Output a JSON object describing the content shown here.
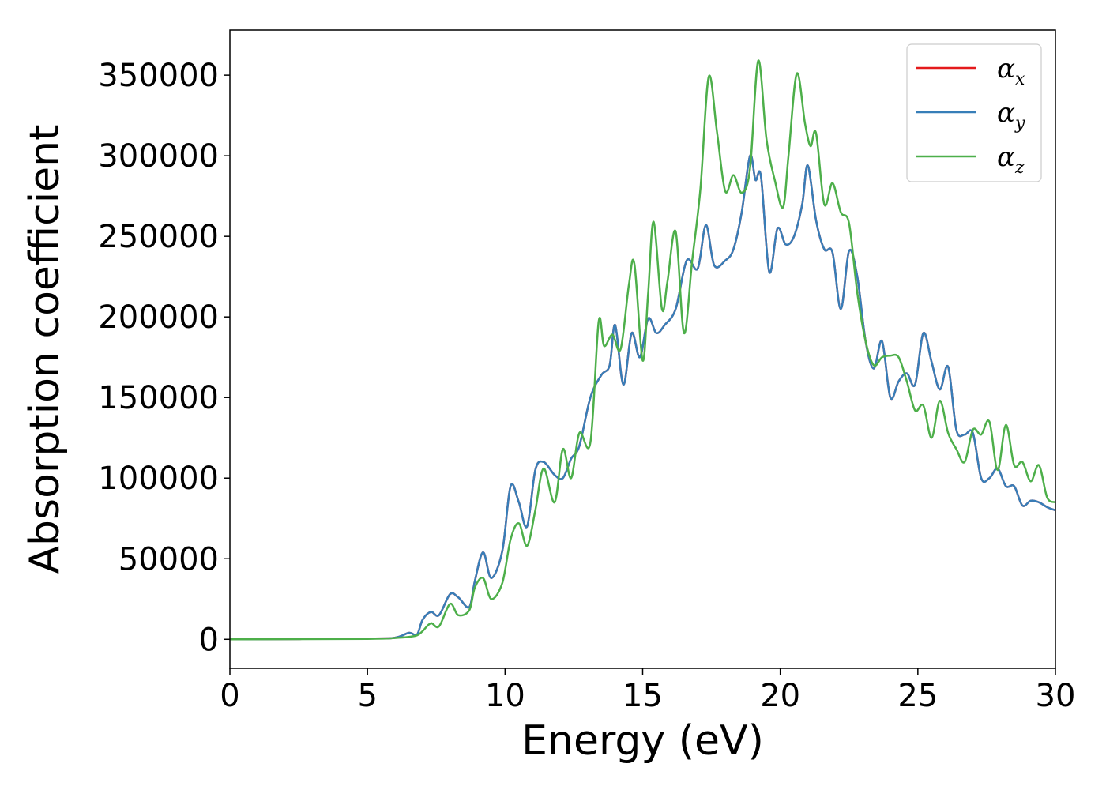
{
  "chart_data": {
    "type": "line",
    "title": "",
    "xlabel": "Energy (eV)",
    "ylabel": "Absorption coefficient",
    "xlim": [
      0,
      30
    ],
    "ylim": [
      -18000,
      378000
    ],
    "xticks": [
      0,
      5,
      10,
      15,
      20,
      25,
      30
    ],
    "xtick_labels": [
      "0",
      "5",
      "10",
      "15",
      "20",
      "25",
      "30"
    ],
    "yticks": [
      0,
      50000,
      100000,
      150000,
      200000,
      250000,
      300000,
      350000
    ],
    "ytick_labels": [
      "0",
      "50000",
      "100000",
      "150000",
      "200000",
      "250000",
      "300000",
      "350000"
    ],
    "grid": false,
    "legend_position": "top-right",
    "series": [
      {
        "name": "α_x",
        "label_base": "α",
        "label_sub": "x",
        "color": "#e41a1c",
        "x": [
          0,
          5,
          6,
          6.5,
          6.8,
          7,
          7.3,
          7.6,
          8,
          8.3,
          8.7,
          8.9,
          9.2,
          9.5,
          9.9,
          10.2,
          10.5,
          10.8,
          11.1,
          11.4,
          11.8,
          12.1,
          12.4,
          12.7,
          13.1,
          13.5,
          13.8,
          14,
          14.3,
          14.6,
          14.9,
          15.2,
          15.5,
          15.8,
          16.2,
          16.6,
          17,
          17.3,
          17.6,
          18,
          18.3,
          18.6,
          18.9,
          19.1,
          19.3,
          19.6,
          19.9,
          20.2,
          20.5,
          20.8,
          21,
          21.3,
          21.6,
          21.9,
          22.2,
          22.5,
          22.8,
          23.1,
          23.4,
          23.7,
          24,
          24.3,
          24.6,
          24.9,
          25.2,
          25.5,
          25.8,
          26.1,
          26.4,
          26.7,
          27,
          27.3,
          27.6,
          27.9,
          28.2,
          28.5,
          28.8,
          29.1,
          29.4,
          29.7,
          30
        ],
        "y": [
          0,
          500,
          1000,
          4000,
          3000,
          12000,
          17000,
          15000,
          28000,
          26000,
          20000,
          36000,
          54000,
          38000,
          55000,
          95000,
          85000,
          70000,
          105000,
          110000,
          102000,
          100000,
          112000,
          120000,
          150000,
          164000,
          170000,
          195000,
          158000,
          190000,
          175000,
          199000,
          190000,
          195000,
          205000,
          235000,
          230000,
          257000,
          232000,
          235000,
          242000,
          265000,
          300000,
          285000,
          287000,
          228000,
          255000,
          245000,
          250000,
          270000,
          294000,
          260000,
          242000,
          240000,
          205000,
          241000,
          225000,
          185000,
          168000,
          185000,
          150000,
          160000,
          165000,
          158000,
          190000,
          172000,
          155000,
          169000,
          130000,
          127000,
          128000,
          100000,
          100000,
          106000,
          95000,
          95000,
          83000,
          86000,
          85000,
          82000,
          80000
        ]
      },
      {
        "name": "α_y",
        "label_base": "α",
        "label_sub": "y",
        "color": "#377eb8",
        "x": [
          0,
          5,
          6,
          6.5,
          6.8,
          7,
          7.3,
          7.6,
          8,
          8.3,
          8.7,
          8.9,
          9.2,
          9.5,
          9.9,
          10.2,
          10.5,
          10.8,
          11.1,
          11.4,
          11.8,
          12.1,
          12.4,
          12.7,
          13.1,
          13.5,
          13.8,
          14,
          14.3,
          14.6,
          14.9,
          15.2,
          15.5,
          15.8,
          16.2,
          16.6,
          17,
          17.3,
          17.6,
          18,
          18.3,
          18.6,
          18.9,
          19.1,
          19.3,
          19.6,
          19.9,
          20.2,
          20.5,
          20.8,
          21,
          21.3,
          21.6,
          21.9,
          22.2,
          22.5,
          22.8,
          23.1,
          23.4,
          23.7,
          24,
          24.3,
          24.6,
          24.9,
          25.2,
          25.5,
          25.8,
          26.1,
          26.4,
          26.7,
          27,
          27.3,
          27.6,
          27.9,
          28.2,
          28.5,
          28.8,
          29.1,
          29.4,
          29.7,
          30
        ],
        "y": [
          0,
          500,
          1000,
          4000,
          3000,
          12000,
          17000,
          15000,
          28000,
          26000,
          20000,
          36000,
          54000,
          38000,
          55000,
          95000,
          85000,
          70000,
          105000,
          110000,
          102000,
          100000,
          112000,
          120000,
          150000,
          164000,
          170000,
          195000,
          158000,
          190000,
          175000,
          199000,
          190000,
          195000,
          205000,
          235000,
          230000,
          257000,
          232000,
          235000,
          242000,
          265000,
          300000,
          285000,
          287000,
          228000,
          255000,
          245000,
          250000,
          270000,
          294000,
          260000,
          242000,
          240000,
          205000,
          241000,
          225000,
          185000,
          168000,
          185000,
          150000,
          160000,
          165000,
          158000,
          190000,
          172000,
          155000,
          169000,
          130000,
          127000,
          128000,
          100000,
          100000,
          106000,
          95000,
          95000,
          83000,
          86000,
          85000,
          82000,
          80000
        ]
      },
      {
        "name": "α_z",
        "label_base": "α",
        "label_sub": "z",
        "color": "#4daf4a",
        "x": [
          0,
          5,
          6,
          6.5,
          6.8,
          7,
          7.3,
          7.6,
          8,
          8.3,
          8.7,
          8.9,
          9.2,
          9.5,
          9.9,
          10.2,
          10.5,
          10.8,
          11.1,
          11.4,
          11.8,
          12.1,
          12.4,
          12.7,
          13.1,
          13.4,
          13.6,
          13.9,
          14.2,
          14.5,
          14.7,
          15,
          15.2,
          15.4,
          15.7,
          15.9,
          16.2,
          16.5,
          16.8,
          17.1,
          17.4,
          17.7,
          18,
          18.3,
          18.6,
          18.9,
          19.2,
          19.5,
          19.8,
          20.1,
          20.3,
          20.6,
          20.9,
          21.1,
          21.3,
          21.6,
          21.9,
          22.2,
          22.5,
          22.8,
          23.1,
          23.4,
          23.7,
          24,
          24.3,
          24.6,
          24.9,
          25.2,
          25.5,
          25.8,
          26.1,
          26.4,
          26.7,
          27,
          27.3,
          27.6,
          27.9,
          28.2,
          28.5,
          28.8,
          29.1,
          29.4,
          29.7,
          30
        ],
        "y": [
          0,
          300,
          800,
          1500,
          2500,
          5000,
          10000,
          8000,
          22000,
          15000,
          18000,
          32000,
          38000,
          25000,
          35000,
          62000,
          72000,
          58000,
          80000,
          106000,
          85000,
          118000,
          100000,
          128000,
          122000,
          197000,
          182000,
          189000,
          180000,
          220000,
          233000,
          173000,
          215000,
          259000,
          205000,
          222000,
          253000,
          190000,
          235000,
          280000,
          349000,
          315000,
          278000,
          288000,
          277000,
          292000,
          359000,
          310000,
          285000,
          268000,
          300000,
          351000,
          320000,
          306000,
          314000,
          270000,
          283000,
          265000,
          258000,
          215000,
          185000,
          170000,
          175000,
          176000,
          175000,
          160000,
          142000,
          145000,
          125000,
          148000,
          128000,
          118000,
          110000,
          130000,
          127000,
          135000,
          105000,
          133000,
          108000,
          110000,
          98000,
          108000,
          88000,
          85000
        ]
      }
    ]
  }
}
